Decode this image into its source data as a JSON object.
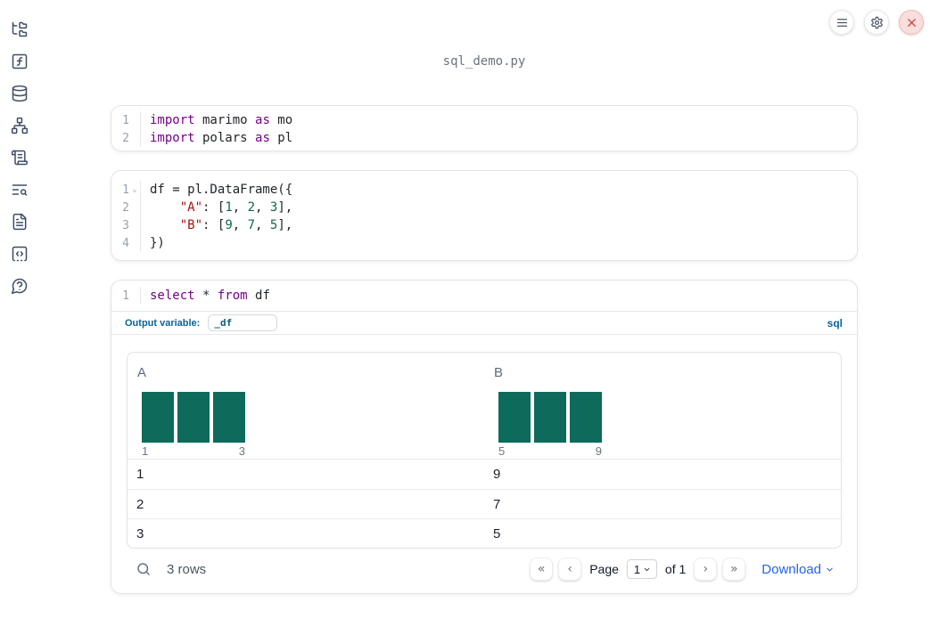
{
  "filename": "sql_demo.py",
  "topbar": {
    "buttons": [
      {
        "name": "menu"
      },
      {
        "name": "settings"
      },
      {
        "name": "shutdown"
      }
    ]
  },
  "sidebar": {
    "items": [
      {
        "name": "file-explorer",
        "icon": "folder-tree-icon"
      },
      {
        "name": "variables",
        "icon": "function-square-icon"
      },
      {
        "name": "datasources",
        "icon": "database-icon"
      },
      {
        "name": "dependencies",
        "icon": "network-icon"
      },
      {
        "name": "scratchpad",
        "icon": "scroll-text-icon"
      },
      {
        "name": "logs",
        "icon": "text-search-icon"
      },
      {
        "name": "documentation",
        "icon": "file-text-icon"
      },
      {
        "name": "snippets",
        "icon": "code-square-icon"
      },
      {
        "name": "help",
        "icon": "help-bubble-icon"
      }
    ]
  },
  "cells": {
    "imports": {
      "lines": [
        {
          "n": "1",
          "tokens": [
            [
              "kw",
              "import"
            ],
            [
              "pl",
              " marimo "
            ],
            [
              "kw",
              "as"
            ],
            [
              "pl",
              " mo"
            ]
          ]
        },
        {
          "n": "2",
          "tokens": [
            [
              "kw",
              "import"
            ],
            [
              "pl",
              " polars "
            ],
            [
              "kw",
              "as"
            ],
            [
              "pl",
              " pl"
            ]
          ]
        }
      ]
    },
    "dataframe": {
      "lines": [
        {
          "n": "1",
          "fold": true,
          "tokens": [
            [
              "pl",
              "df = pl.DataFrame({"
            ]
          ]
        },
        {
          "n": "2",
          "tokens": [
            [
              "pl",
              "    "
            ],
            [
              "str",
              "\"A\""
            ],
            [
              "pl",
              ": ["
            ],
            [
              "num",
              "1"
            ],
            [
              "pl",
              ", "
            ],
            [
              "num",
              "2"
            ],
            [
              "pl",
              ", "
            ],
            [
              "num",
              "3"
            ],
            [
              "pl",
              "],"
            ]
          ]
        },
        {
          "n": "3",
          "tokens": [
            [
              "pl",
              "    "
            ],
            [
              "str",
              "\"B\""
            ],
            [
              "pl",
              ": ["
            ],
            [
              "num",
              "9"
            ],
            [
              "pl",
              ", "
            ],
            [
              "num",
              "7"
            ],
            [
              "pl",
              ", "
            ],
            [
              "num",
              "5"
            ],
            [
              "pl",
              "],"
            ]
          ]
        },
        {
          "n": "4",
          "tokens": [
            [
              "pl",
              "})"
            ]
          ]
        }
      ]
    },
    "sql": {
      "lines": [
        {
          "n": "1",
          "tokens": [
            [
              "kw",
              "select"
            ],
            [
              "pl",
              " * "
            ],
            [
              "kw",
              "from"
            ],
            [
              "pl",
              " df"
            ]
          ]
        }
      ],
      "output_variable_label": "Output variable:",
      "output_variable_value": "_df",
      "language_badge": "sql"
    }
  },
  "table": {
    "columns": [
      {
        "label": "A",
        "hist": {
          "values": [
            1,
            1,
            1
          ],
          "axis_labels": [
            "1",
            "3"
          ]
        }
      },
      {
        "label": "B",
        "hist": {
          "values": [
            1,
            1,
            1
          ],
          "axis_labels": [
            "5",
            "9"
          ]
        }
      }
    ],
    "rows": [
      [
        "1",
        "9"
      ],
      [
        "2",
        "7"
      ],
      [
        "3",
        "5"
      ]
    ],
    "footer": {
      "row_count": "3 rows",
      "page_label": "Page",
      "page_value": "1",
      "of_label": "of 1",
      "download_label": "Download"
    }
  },
  "colors": {
    "histogram_bar": "#0e6a5b",
    "keyword": "#770088",
    "string": "#aa1111",
    "number": "#116644",
    "sql_accent": "#0b6399",
    "link_blue": "#2563eb",
    "shutdown_bg": "#fadddd",
    "shutdown_x": "#cf4444"
  }
}
